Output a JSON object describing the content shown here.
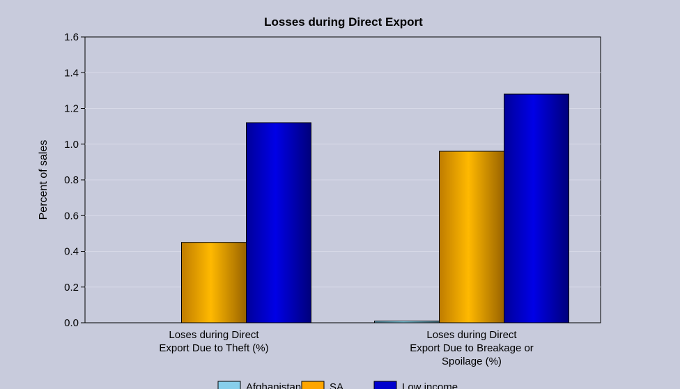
{
  "chart_data": {
    "type": "bar",
    "title": "Losses during Direct Export",
    "ylabel": "Percent of sales",
    "xlabel": "",
    "ylim": [
      0,
      1.6
    ],
    "yticks": [
      "0.0",
      "0.2",
      "0.4",
      "0.6",
      "0.8",
      "1.0",
      "1.2",
      "1.4",
      "1.6"
    ],
    "grid": true,
    "legend_position": "bottom",
    "categories": [
      [
        "Loses during Direct",
        "Export Due to Theft (%)"
      ],
      [
        "Loses during Direct",
        "Export Due to Breakage or",
        "Spoilage (%)"
      ]
    ],
    "series": [
      {
        "name": "Afghanistan",
        "values": [
          0.0,
          0.01
        ],
        "color": "#87ceeb"
      },
      {
        "name": "SA",
        "values": [
          0.45,
          0.96
        ],
        "color": "#ffa500"
      },
      {
        "name": "Low income",
        "values": [
          1.12,
          1.28
        ],
        "color": "#0000cd"
      }
    ]
  }
}
